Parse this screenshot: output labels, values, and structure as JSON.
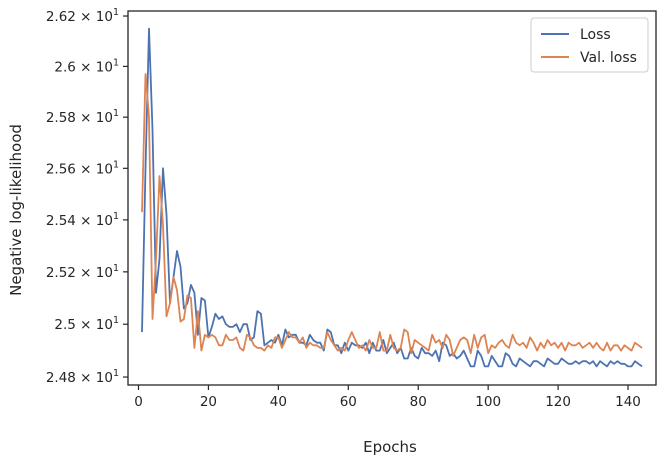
{
  "chart_data": {
    "type": "line",
    "xlabel": "Epochs",
    "ylabel": "Negative log-likelihood",
    "xlim": [
      -3,
      148
    ],
    "ylim": [
      24.77,
      26.22
    ],
    "y_scale": "log",
    "x_ticks": [
      0,
      20,
      40,
      60,
      80,
      100,
      120,
      140
    ],
    "x_tick_labels": [
      "0",
      "20",
      "40",
      "60",
      "80",
      "100",
      "120",
      "140"
    ],
    "y_ticks": [
      24.8,
      25.0,
      25.2,
      25.4,
      25.6,
      25.8,
      26.0,
      26.2
    ],
    "y_tick_labels": [
      {
        "mantissa": "2.48",
        "base": "10",
        "exp": "1"
      },
      {
        "mantissa": "2.5",
        "base": "10",
        "exp": "1"
      },
      {
        "mantissa": "2.52",
        "base": "10",
        "exp": "1"
      },
      {
        "mantissa": "2.54",
        "base": "10",
        "exp": "1"
      },
      {
        "mantissa": "2.56",
        "base": "10",
        "exp": "1"
      },
      {
        "mantissa": "2.58",
        "base": "10",
        "exp": "1"
      },
      {
        "mantissa": "2.6",
        "base": "10",
        "exp": "1"
      },
      {
        "mantissa": "2.62",
        "base": "10",
        "exp": "1"
      }
    ],
    "legend_position": "top-right",
    "grid": false,
    "series": [
      {
        "name": "Loss",
        "color": "#4c72b0",
        "x_start": 1,
        "values": [
          24.97,
          25.6,
          26.15,
          25.75,
          25.12,
          25.25,
          25.6,
          25.42,
          25.08,
          25.18,
          25.28,
          25.22,
          25.06,
          25.08,
          25.15,
          25.12,
          24.96,
          25.1,
          25.09,
          24.95,
          24.99,
          25.04,
          25.02,
          25.03,
          25.0,
          24.99,
          24.99,
          25.0,
          24.97,
          25.0,
          25.0,
          24.94,
          24.95,
          25.05,
          25.04,
          24.92,
          24.93,
          24.94,
          24.93,
          24.96,
          24.92,
          24.98,
          24.95,
          24.96,
          24.96,
          24.93,
          24.93,
          24.92,
          24.96,
          24.94,
          24.93,
          24.93,
          24.9,
          24.98,
          24.97,
          24.92,
          24.92,
          24.89,
          24.93,
          24.9,
          24.93,
          24.92,
          24.92,
          24.91,
          24.93,
          24.89,
          24.93,
          24.9,
          24.9,
          24.94,
          24.89,
          24.91,
          24.93,
          24.89,
          24.91,
          24.87,
          24.87,
          24.91,
          24.88,
          24.87,
          24.91,
          24.89,
          24.89,
          24.88,
          24.9,
          24.86,
          24.93,
          24.92,
          24.88,
          24.89,
          24.87,
          24.88,
          24.9,
          24.87,
          24.84,
          24.84,
          24.9,
          24.88,
          24.84,
          24.84,
          24.88,
          24.86,
          24.84,
          24.84,
          24.89,
          24.88,
          24.85,
          24.84,
          24.87,
          24.86,
          24.85,
          24.84,
          24.86,
          24.86,
          24.85,
          24.84,
          24.87,
          24.86,
          24.85,
          24.85,
          24.87,
          24.86,
          24.85,
          24.85,
          24.86,
          24.85,
          24.86,
          24.86,
          24.85,
          24.86,
          24.84,
          24.86,
          24.85,
          24.84,
          24.86,
          24.85,
          24.86,
          24.85,
          24.85,
          24.84,
          24.84,
          24.86,
          24.85,
          24.84
        ]
      },
      {
        "name": "Val. loss",
        "color": "#dd8452",
        "x_start": 1,
        "values": [
          25.43,
          25.97,
          25.8,
          25.02,
          25.25,
          25.57,
          25.38,
          25.03,
          25.08,
          25.18,
          25.13,
          25.01,
          25.02,
          25.11,
          25.1,
          24.91,
          25.05,
          24.9,
          24.96,
          24.95,
          24.96,
          24.95,
          24.92,
          24.92,
          24.96,
          24.94,
          24.94,
          24.95,
          24.91,
          24.9,
          24.96,
          24.95,
          24.92,
          24.91,
          24.91,
          24.9,
          24.92,
          24.91,
          24.95,
          24.95,
          24.91,
          24.94,
          24.97,
          24.95,
          24.95,
          24.93,
          24.95,
          24.91,
          24.93,
          24.92,
          24.92,
          24.91,
          24.91,
          24.97,
          24.94,
          24.92,
          24.9,
          24.91,
          24.9,
          24.94,
          24.97,
          24.94,
          24.91,
          24.92,
          24.9,
          24.94,
          24.91,
          24.91,
          24.97,
          24.9,
          24.9,
          24.96,
          24.91,
          24.9,
          24.91,
          24.98,
          24.97,
          24.89,
          24.94,
          24.93,
          24.92,
          24.91,
          24.9,
          24.96,
          24.93,
          24.94,
          24.91,
          24.96,
          24.94,
          24.88,
          24.91,
          24.94,
          24.95,
          24.94,
          24.89,
          24.96,
          24.91,
          24.95,
          24.96,
          24.89,
          24.92,
          24.91,
          24.93,
          24.94,
          24.92,
          24.91,
          24.96,
          24.93,
          24.92,
          24.93,
          24.91,
          24.95,
          24.93,
          24.9,
          24.93,
          24.91,
          24.94,
          24.92,
          24.93,
          24.91,
          24.93,
          24.9,
          24.93,
          24.92,
          24.92,
          24.93,
          24.91,
          24.92,
          24.93,
          24.91,
          24.93,
          24.91,
          24.9,
          24.93,
          24.9,
          24.92,
          24.92,
          24.9,
          24.92,
          24.91,
          24.9,
          24.93,
          24.92,
          24.91
        ]
      }
    ]
  }
}
